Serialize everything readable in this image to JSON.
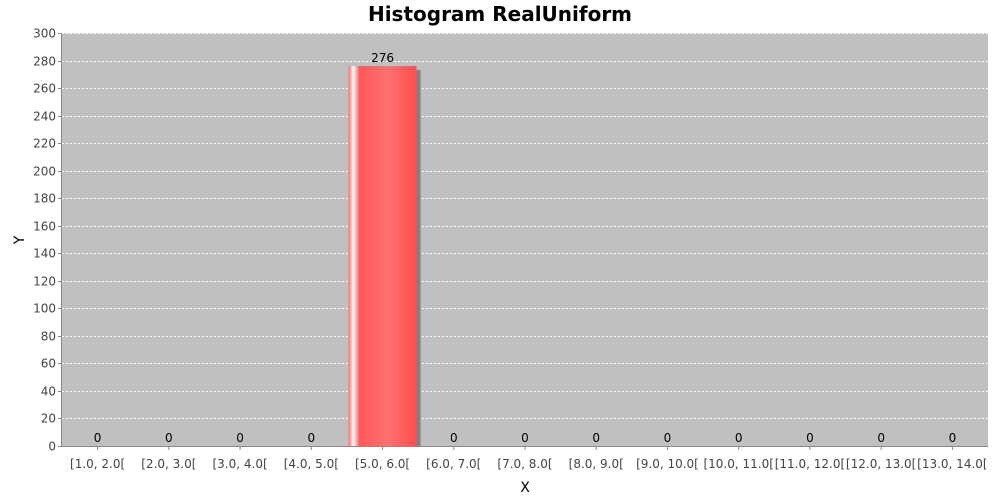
{
  "chart_data": {
    "type": "bar",
    "title": "Histogram RealUniform",
    "xlabel": "X",
    "ylabel": "Y",
    "categories": [
      "[1.0, 2.0[",
      "[2.0, 3.0[",
      "[3.0, 4.0[",
      "[4.0, 5.0[",
      "[5.0, 6.0[",
      "[6.0, 7.0[",
      "[7.0, 8.0[",
      "[8.0, 9.0[",
      "[9.0, 10.0[",
      "[10.0, 11.0[",
      "[11.0, 12.0[",
      "[12.0, 13.0[",
      "[13.0, 14.0["
    ],
    "values": [
      0,
      0,
      0,
      0,
      276,
      0,
      0,
      0,
      0,
      0,
      0,
      0,
      0
    ],
    "ylim": [
      0,
      300
    ],
    "yticks": [
      0,
      20,
      40,
      60,
      80,
      100,
      120,
      140,
      160,
      180,
      200,
      220,
      240,
      260,
      280,
      300
    ],
    "grid": true,
    "data_labels": true,
    "legend": false,
    "colors": {
      "bar": "#ff6666",
      "plot_background": "#c0c0c0",
      "gridline": "#ffffff"
    }
  }
}
